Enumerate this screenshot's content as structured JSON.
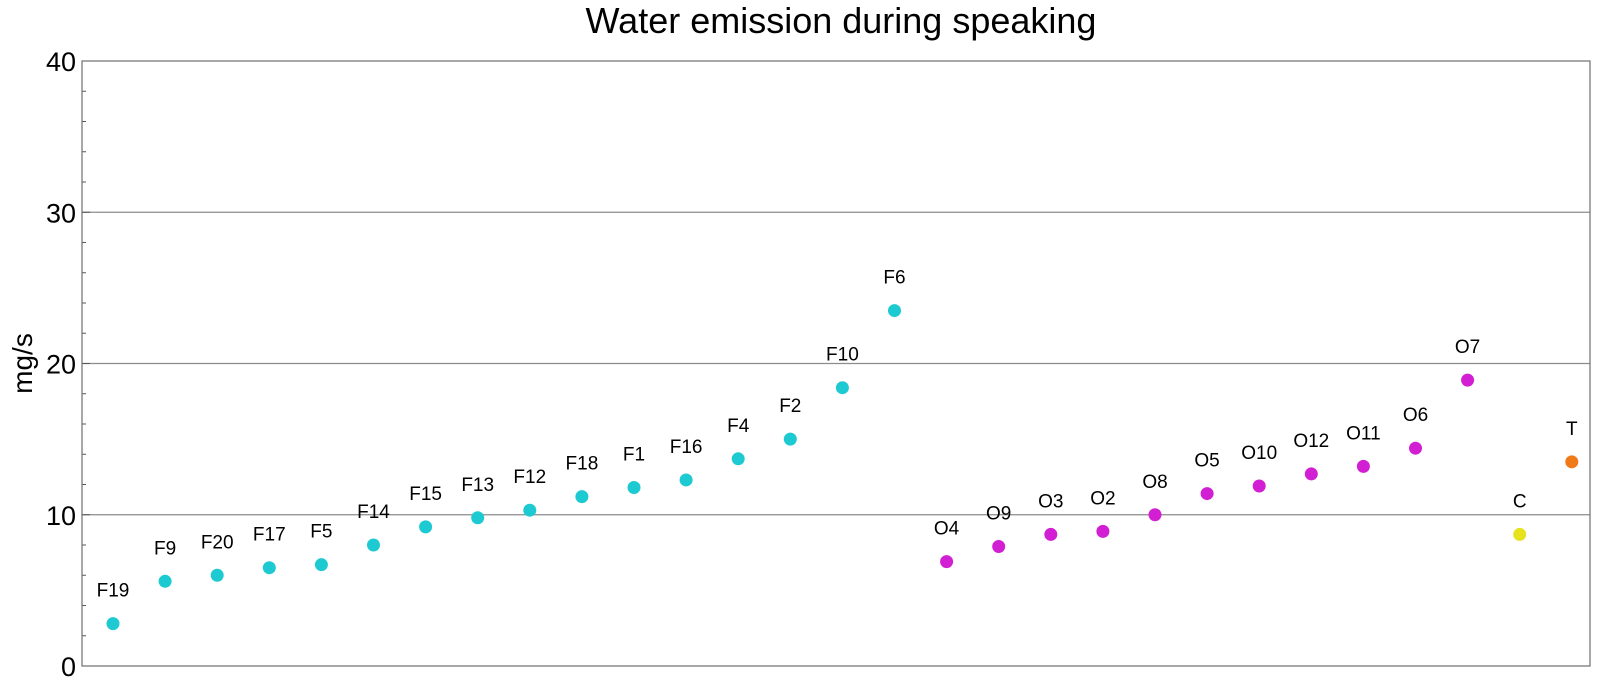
{
  "chart_data": {
    "type": "scatter",
    "title": "Water emission during speaking",
    "ylabel": "mg/s",
    "xlabel": "",
    "ylim": [
      0,
      40
    ],
    "yticks": [
      0,
      10,
      20,
      30,
      40
    ],
    "grid": "horizontal",
    "colors": {
      "F": "#1ecad1",
      "O": "#d21fd3",
      "C": "#e6e21c",
      "T": "#f07a17"
    },
    "points": [
      {
        "label": "F19",
        "group": "F",
        "y": 2.8
      },
      {
        "label": "F9",
        "group": "F",
        "y": 5.6
      },
      {
        "label": "F20",
        "group": "F",
        "y": 6.0
      },
      {
        "label": "F17",
        "group": "F",
        "y": 6.5
      },
      {
        "label": "F5",
        "group": "F",
        "y": 6.7
      },
      {
        "label": "F14",
        "group": "F",
        "y": 8.0
      },
      {
        "label": "F15",
        "group": "F",
        "y": 9.2
      },
      {
        "label": "F13",
        "group": "F",
        "y": 9.8
      },
      {
        "label": "F12",
        "group": "F",
        "y": 10.3
      },
      {
        "label": "F18",
        "group": "F",
        "y": 11.2
      },
      {
        "label": "F1",
        "group": "F",
        "y": 11.8
      },
      {
        "label": "F16",
        "group": "F",
        "y": 12.3
      },
      {
        "label": "F4",
        "group": "F",
        "y": 13.7
      },
      {
        "label": "F2",
        "group": "F",
        "y": 15.0
      },
      {
        "label": "F10",
        "group": "F",
        "y": 18.4
      },
      {
        "label": "F6",
        "group": "F",
        "y": 23.5
      },
      {
        "label": "O4",
        "group": "O",
        "y": 6.9
      },
      {
        "label": "O9",
        "group": "O",
        "y": 7.9
      },
      {
        "label": "O3",
        "group": "O",
        "y": 8.7
      },
      {
        "label": "O2",
        "group": "O",
        "y": 8.9
      },
      {
        "label": "O8",
        "group": "O",
        "y": 10.0
      },
      {
        "label": "O5",
        "group": "O",
        "y": 11.4
      },
      {
        "label": "O10",
        "group": "O",
        "y": 11.9
      },
      {
        "label": "O12",
        "group": "O",
        "y": 12.7
      },
      {
        "label": "O11",
        "group": "O",
        "y": 13.2
      },
      {
        "label": "O6",
        "group": "O",
        "y": 14.4
      },
      {
        "label": "O7",
        "group": "O",
        "y": 18.9
      },
      {
        "label": "C",
        "group": "C",
        "y": 8.7
      },
      {
        "label": "T",
        "group": "T",
        "y": 13.5
      }
    ]
  }
}
